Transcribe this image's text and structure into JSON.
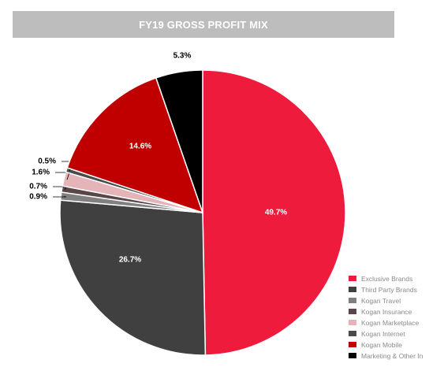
{
  "chart_data": {
    "type": "pie",
    "title": "FY19 GROSS PROFIT MIX",
    "slices": [
      {
        "name": "Exclusive Brands",
        "value": 49.7,
        "label": "49.7%",
        "color": "#ee1b3d"
      },
      {
        "name": "Third Party Brands",
        "value": 26.7,
        "label": "26.7%",
        "color": "#404041"
      },
      {
        "name": "Kogan Travel",
        "value": 0.9,
        "label": "0.9%",
        "color": "#808080"
      },
      {
        "name": "Kogan Insurance",
        "value": 0.7,
        "label": "0.7%",
        "color": "#5a4548"
      },
      {
        "name": "Kogan Marketplace",
        "value": 1.6,
        "label": "1.6%",
        "color": "#e5b4b8"
      },
      {
        "name": "Kogan Internet",
        "value": 0.5,
        "label": "0.5%",
        "color": "#4a4a4a"
      },
      {
        "name": "Kogan Mobile",
        "value": 14.6,
        "label": "14.6%",
        "color": "#c00000"
      },
      {
        "name": "Marketing & Other In",
        "value": 5.3,
        "label": "5.3%",
        "color": "#000000"
      }
    ],
    "start": "12 o'clock",
    "direction": "clockwise",
    "legend_position": "bottom-right"
  }
}
